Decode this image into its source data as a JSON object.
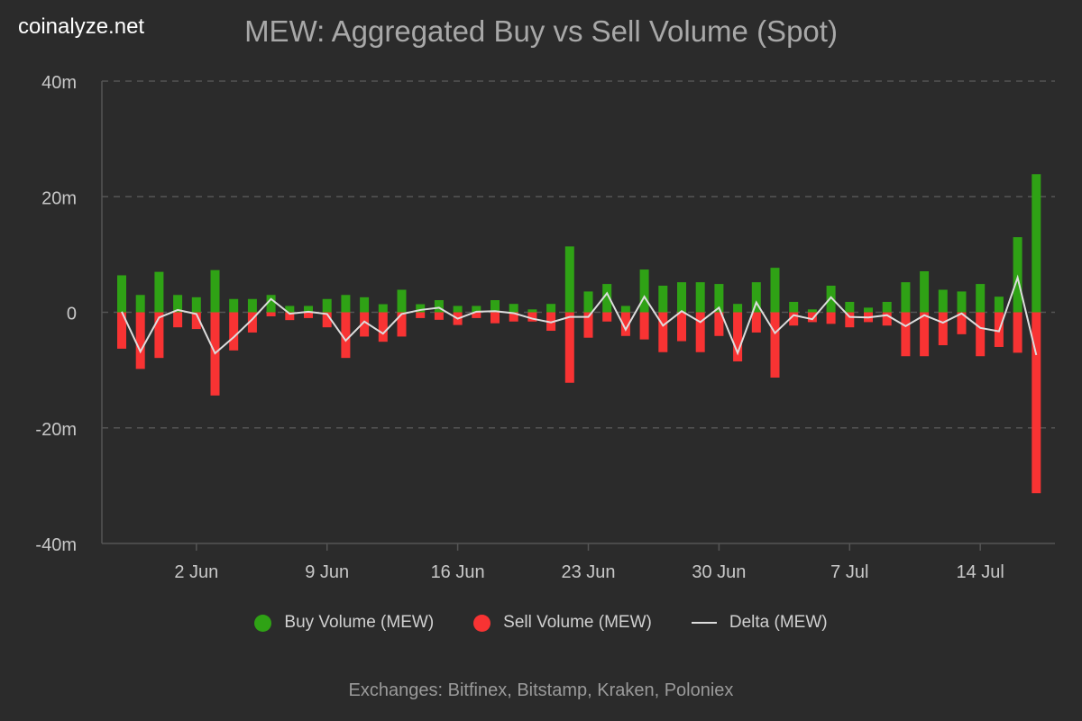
{
  "logo": "coinalyze.net",
  "chart_data": {
    "type": "bar",
    "title": "MEW: Aggregated Buy vs Sell Volume (Spot)",
    "ylim": [
      -40,
      40
    ],
    "yticks": [
      "40m",
      "20m",
      "0",
      "-20m",
      "-40m"
    ],
    "ytick_values": [
      40,
      20,
      0,
      -20,
      -40
    ],
    "unit": "millions",
    "grid": true,
    "legend_position": "bottom",
    "x_start": "29 May",
    "x_end": "17 Jul",
    "xticks": [
      {
        "label": "2 Jun",
        "index": 4
      },
      {
        "label": "9 Jun",
        "index": 11
      },
      {
        "label": "16 Jun",
        "index": 18
      },
      {
        "label": "23 Jun",
        "index": 25
      },
      {
        "label": "30 Jun",
        "index": 32
      },
      {
        "label": "7 Jul",
        "index": 39
      },
      {
        "label": "14 Jul",
        "index": 46
      }
    ],
    "series": [
      {
        "name": "Buy Volume (MEW)",
        "color": "#2fa215",
        "type": "bar",
        "values": [
          6.4,
          3.0,
          7.0,
          3.0,
          2.6,
          7.3,
          2.3,
          2.3,
          3.0,
          1.1,
          1.1,
          2.3,
          3.0,
          2.6,
          1.4,
          3.9,
          1.4,
          2.1,
          1.1,
          1.1,
          2.1,
          1.45,
          0.5,
          1.45,
          11.4,
          3.6,
          4.9,
          1.1,
          7.4,
          4.6,
          5.2,
          5.2,
          4.9,
          1.45,
          5.2,
          7.7,
          1.8,
          0.5,
          4.6,
          1.8,
          0.8,
          1.8,
          5.2,
          7.1,
          3.9,
          3.6,
          4.9,
          2.7,
          13.0,
          23.9
        ]
      },
      {
        "name": "Sell Volume (MEW)",
        "color": "#f83333",
        "type": "bar",
        "values": [
          6.3,
          9.8,
          7.9,
          2.6,
          2.9,
          14.4,
          6.6,
          3.5,
          0.7,
          1.35,
          1.0,
          2.6,
          7.9,
          4.2,
          5.1,
          4.2,
          1.0,
          1.3,
          2.2,
          1.0,
          1.9,
          1.6,
          1.6,
          3.2,
          12.2,
          4.4,
          1.6,
          4.1,
          4.7,
          6.9,
          5.0,
          6.9,
          4.1,
          8.5,
          3.5,
          11.3,
          2.3,
          1.7,
          2.0,
          2.6,
          1.7,
          2.3,
          7.6,
          7.6,
          5.7,
          3.8,
          7.6,
          6.0,
          7.0,
          31.3
        ]
      },
      {
        "name": "Delta (MEW)",
        "color": "#dddddd",
        "type": "line",
        "values": "buy minus sell"
      }
    ]
  },
  "footer": "Exchanges: Bitfinex, Bitstamp, Kraken, Poloniex"
}
